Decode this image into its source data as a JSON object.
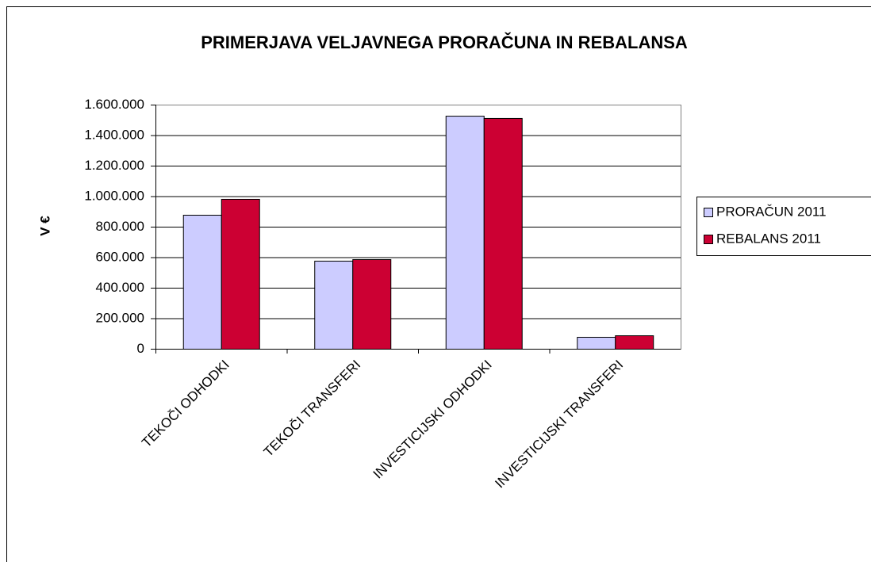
{
  "chart_data": {
    "type": "bar",
    "title": "PRIMERJAVA VELJAVNEGA PRORAČUNA IN REBALANSA",
    "y_label": "V €",
    "categories": [
      "TEKOČI ODHODKI",
      "TEKOČI TRANSFERI",
      "INVESTICIJSKI ODHODKI",
      "INVESTICIJSKI TRANSFERI"
    ],
    "series": [
      {
        "name": "PRORAČUN 2011",
        "color": "#ccccff",
        "values": [
          878000,
          577000,
          1527000,
          78000
        ]
      },
      {
        "name": "REBALANS 2011",
        "color": "#cc0033",
        "values": [
          982000,
          587000,
          1512000,
          88000
        ]
      }
    ],
    "ylim": [
      0,
      1600000
    ],
    "yticks": [
      0,
      {
        "value": 200000,
        "label": "200.000"
      },
      {
        "value": 400000,
        "label": "400.000"
      },
      {
        "value": 600000,
        "label": "600.000"
      },
      {
        "value": 800000,
        "label": "800.000"
      },
      {
        "value": 1000000,
        "label": "1.000.000"
      },
      {
        "value": 1200000,
        "label": "1.200.000"
      },
      {
        "value": 1400000,
        "label": "1.400.000"
      },
      {
        "value": 1600000,
        "label": "1.600.000"
      }
    ],
    "grid": true,
    "legend": "right"
  }
}
